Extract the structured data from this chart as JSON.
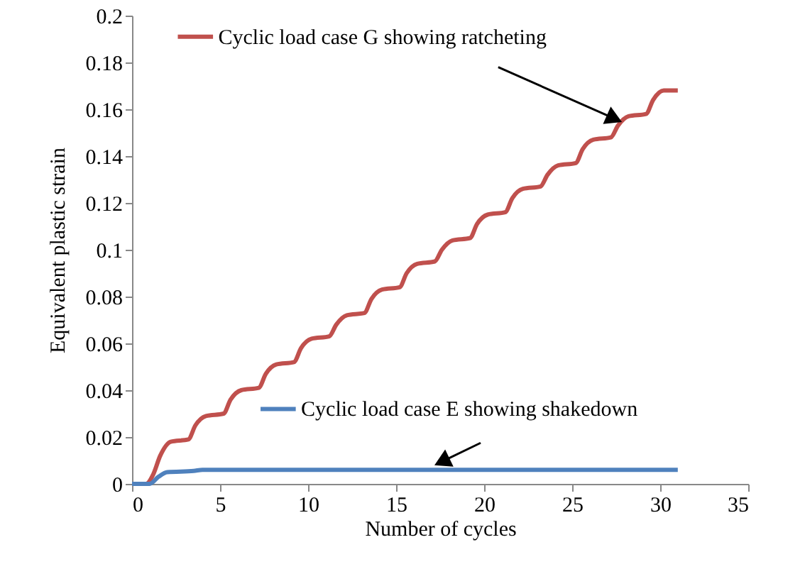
{
  "chart_data": {
    "type": "line",
    "xlabel": "Number of cycles",
    "ylabel": "Equivalent plastic strain",
    "xlim": [
      0,
      35
    ],
    "xticks": [
      0,
      5,
      10,
      15,
      20,
      25,
      30,
      35
    ],
    "ylim": [
      0,
      0.2
    ],
    "yticks": [
      0,
      0.02,
      0.04,
      0.06,
      0.08,
      0.1,
      0.12,
      0.14,
      0.16,
      0.18,
      0.2
    ],
    "grid": false,
    "legend": "top left",
    "marker": "none",
    "line_style": "solid",
    "series": [
      {
        "name": "Cyclic load case G showing ratcheting",
        "color": "#c0504d",
        "x": [
          0,
          0.8,
          1.2,
          1.6,
          2.2,
          3.2,
          3.6,
          4.2,
          5.2,
          5.6,
          6.2,
          7.2,
          7.6,
          8.2,
          9.2,
          9.6,
          10.2,
          11.2,
          11.6,
          12.2,
          13.2,
          13.6,
          14.2,
          15.2,
          15.6,
          16.2,
          17.2,
          17.6,
          18.2,
          19.2,
          19.6,
          20.2,
          21.2,
          21.6,
          22.2,
          23.2,
          23.6,
          24.2,
          25.2,
          25.6,
          26.2,
          27.2,
          27.6,
          28.2,
          29.2,
          29.6,
          30.2,
          31
        ],
        "values": [
          0,
          0,
          0.004,
          0.012,
          0.018,
          0.019,
          0.025,
          0.029,
          0.03,
          0.036,
          0.04,
          0.041,
          0.047,
          0.051,
          0.052,
          0.058,
          0.062,
          0.063,
          0.068,
          0.072,
          0.073,
          0.079,
          0.083,
          0.084,
          0.09,
          0.094,
          0.095,
          0.1,
          0.104,
          0.105,
          0.111,
          0.115,
          0.116,
          0.122,
          0.126,
          0.127,
          0.132,
          0.136,
          0.137,
          0.143,
          0.147,
          0.148,
          0.153,
          0.157,
          0.158,
          0.164,
          0.168,
          0.168
        ]
      },
      {
        "name": "Cyclic load case E showing shakedown",
        "color": "#4f81bd",
        "x": [
          0,
          1,
          1.5,
          2,
          3.5,
          4,
          31
        ],
        "values": [
          0,
          0,
          0.003,
          0.005,
          0.0055,
          0.006,
          0.006
        ]
      }
    ]
  }
}
